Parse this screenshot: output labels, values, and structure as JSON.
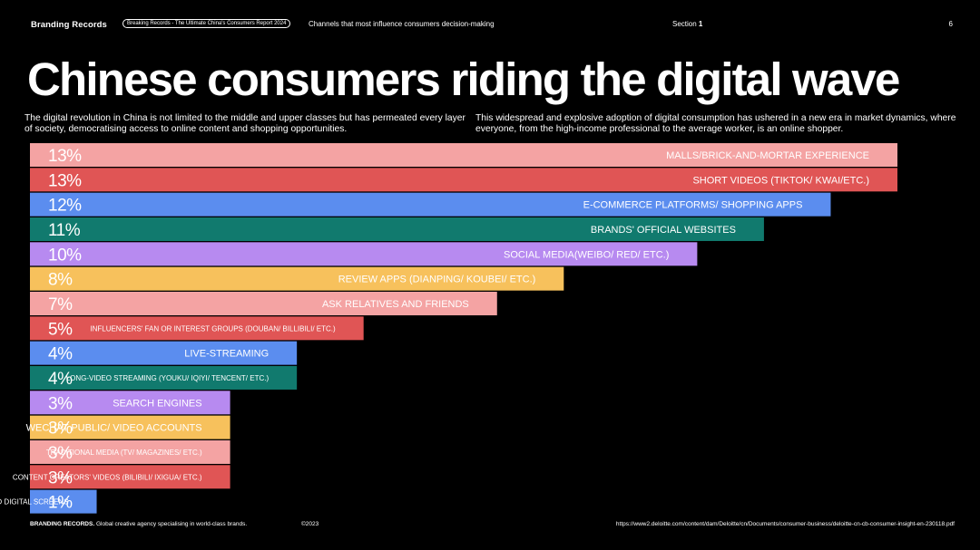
{
  "header": {
    "brand": "Branding Records",
    "report": "Breaking Records - The Ultimate China's Consumers Report 2024",
    "topic": "Channels that most influence consumers decision-making",
    "section_label": "Section",
    "section_number": "1",
    "page_number": "6"
  },
  "title": "Chinese consumers riding the digital wave",
  "intro": {
    "left": "The digital revolution in China is not limited to the middle and upper classes but has permeated every layer of society, democratising access to online content and shopping opportunities.",
    "right": "This widespread and explosive adoption of digital consumption has ushered in a new era in market dynamics, where everyone, from the high-income professional to the average worker, is an online shopper."
  },
  "chart_data": {
    "type": "bar",
    "orientation": "horizontal",
    "unit": "%",
    "categories": [
      "MALLS/BRICK-AND-MORTAR EXPERIENCE",
      "SHORT VIDEOS (TIKTOK/ KWAI/ETC.)",
      "E-COMMERCE PLATFORMS/ SHOPPING APPS",
      "BRANDS' OFFICIAL WEBSITES",
      "SOCIAL MEDIA(WEIBO/ RED/ ETC.)",
      "REVIEW APPS (DIANPING/ KOUBEI/ ETC.)",
      "ASK RELATIVES AND FRIENDS",
      "INFLUENCERS' FAN OR INTEREST GROUPS (DOUBAN/ BILLIBILI/ ETC.)",
      "LIVE-STREAMING",
      "LONG-VIDEO STREAMING (YOUKU/ IQIYI/ TENCENT/ ETC.)",
      "SEARCH ENGINES",
      "WECHAT PUBLIC/ VIDEO ACCOUNTS",
      "TRADITIONAL MEDIA (TV/ MAGAZINES/ ETC.)",
      "CONTENT CREATORS' VIDEOS (BILIBILI/ IXIGUA/ ETC.)",
      "BILLBOARDS AND DIGITAL SCREENS"
    ],
    "values": [
      13,
      13,
      12,
      11,
      10,
      8,
      7,
      5,
      4,
      4,
      3,
      3,
      3,
      3,
      1
    ],
    "value_labels": [
      "13%",
      "13%",
      "12%",
      "11%",
      "10%",
      "8%",
      "7%",
      "5%",
      "4%",
      "4%",
      "3%",
      "3%",
      "3%",
      "3%",
      "1%"
    ],
    "colors": [
      "#f4a3a3",
      "#e05555",
      "#5b8def",
      "#117a6e",
      "#b78af0",
      "#f7c15c",
      "#f4a3a3",
      "#e05555",
      "#5b8def",
      "#117a6e",
      "#b78af0",
      "#f7c15c",
      "#f4a3a3",
      "#e05555",
      "#5b8def"
    ],
    "label_emphasis": [
      1,
      1,
      1,
      1,
      1,
      1,
      1,
      0,
      1,
      0,
      1,
      1,
      0,
      0,
      0
    ],
    "xlim": [
      0,
      13
    ]
  },
  "footer": {
    "brand_bold": "BRANDING RECORDS.",
    "brand_tagline": " Global creative agency specialising in world-class brands.",
    "copyright": "©2023",
    "source": "https://www2.deloitte.com/content/dam/Deloitte/cn/Documents/consumer-business/deloitte-cn-cb-consumer-insight-en-230118.pdf"
  }
}
